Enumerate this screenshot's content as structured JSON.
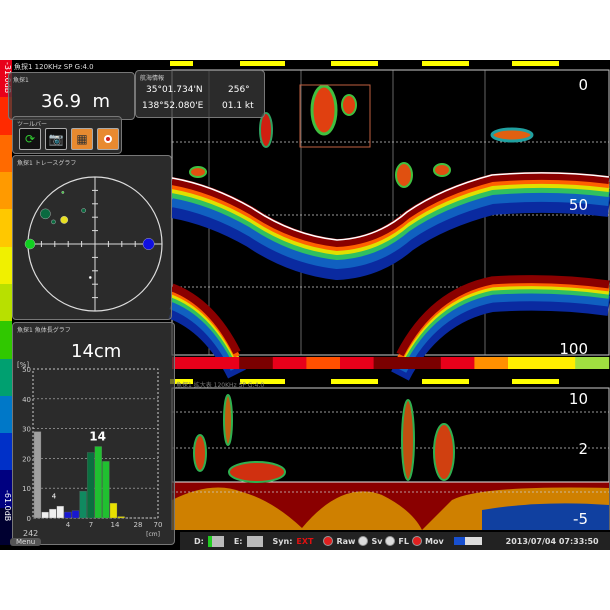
{
  "header": {
    "channel_label": "魚探1  120KHz SP  G:4.0",
    "zoom_channel_label": "魚探1 拡大表  120KHz SP  G:4.0"
  },
  "color_scale": {
    "top_label": "-31.0dB",
    "bottom_label": "-61.0dB",
    "colors": [
      "#e8001a",
      "#ff2a00",
      "#ff6a00",
      "#ff9a00",
      "#ffc800",
      "#f0f000",
      "#b8e000",
      "#30c800",
      "#00a070",
      "#0078c8",
      "#0030c8",
      "#000080",
      "#000030"
    ]
  },
  "depth_panel": {
    "title": "魚探1",
    "value": "36.9",
    "unit": "m"
  },
  "nav_panel": {
    "title": "航海情報",
    "lat": "35°01.734'N",
    "lon": "138°52.080'E",
    "heading": "256°",
    "speed": "01.1 kt"
  },
  "toolbar": {
    "title": "ツールバー",
    "buttons": [
      {
        "icon": "refresh-icon"
      },
      {
        "icon": "camera-icon"
      },
      {
        "icon": "fish-school-icon"
      },
      {
        "icon": "record-icon"
      }
    ]
  },
  "trace_graph": {
    "title": "魚探1 トレースグラフ",
    "dots": [
      {
        "x": -0.74,
        "y": 0.45,
        "r": 0.15,
        "color": "#0a6a40"
      },
      {
        "x": -0.62,
        "y": 0.33,
        "r": 0.06,
        "color": "#0a6a40"
      },
      {
        "x": -0.46,
        "y": 0.36,
        "r": 0.11,
        "color": "#e8e020"
      },
      {
        "x": -0.97,
        "y": 0,
        "r": 0.15,
        "color": "#10d020"
      },
      {
        "x": 0.8,
        "y": 0,
        "r": 0.17,
        "color": "#1010e0"
      },
      {
        "x": -0.17,
        "y": 0.5,
        "r": 0.06,
        "color": "#0a6a40"
      },
      {
        "x": -0.48,
        "y": 0.77,
        "r": 0.03,
        "color": "#40d040"
      },
      {
        "x": -0.07,
        "y": -0.5,
        "r": 0.03,
        "color": "#ffffff"
      }
    ]
  },
  "length_graph": {
    "title": "魚探1 魚体長グラフ",
    "value": "14cm",
    "y_unit": "[%]",
    "x_unit": "[cm]",
    "count": "242",
    "peak_label": "14",
    "minor_label": "4",
    "y_ticks": [
      "50",
      "40",
      "30",
      "20",
      "10",
      "0"
    ],
    "x_ticks": [
      "4",
      "7",
      "14",
      "28",
      "70"
    ]
  },
  "chart_data": {
    "type": "bar",
    "ylim": [
      0,
      50
    ],
    "values": [
      29,
      2,
      3,
      4,
      2,
      2.5,
      9,
      22,
      24,
      19,
      5,
      0.5
    ],
    "colors": [
      "#a0a0a0",
      "#f0f0f0",
      "#f0f0f0",
      "#f0f0f0",
      "#1818d0",
      "#1818d0",
      "#108a60",
      "#0a7040",
      "#20c030",
      "#20c030",
      "#e8e000",
      "#e8e000"
    ]
  },
  "echogram": {
    "depth_labels": [
      "0",
      "50",
      "100"
    ],
    "zoom_depth_labels": [
      "10",
      "2",
      "-5"
    ]
  },
  "status": {
    "d_label": "D:",
    "e_label": "E:",
    "syn_label": "Syn:",
    "syn_value": "EXT",
    "modes": [
      {
        "label": "Raw",
        "on": true
      },
      {
        "label": "Sv",
        "on": false
      },
      {
        "label": "FL",
        "on": false
      },
      {
        "label": "Mov",
        "on": true
      }
    ],
    "datetime": "2013/07/04  07:33:50",
    "menu": "Menu"
  }
}
